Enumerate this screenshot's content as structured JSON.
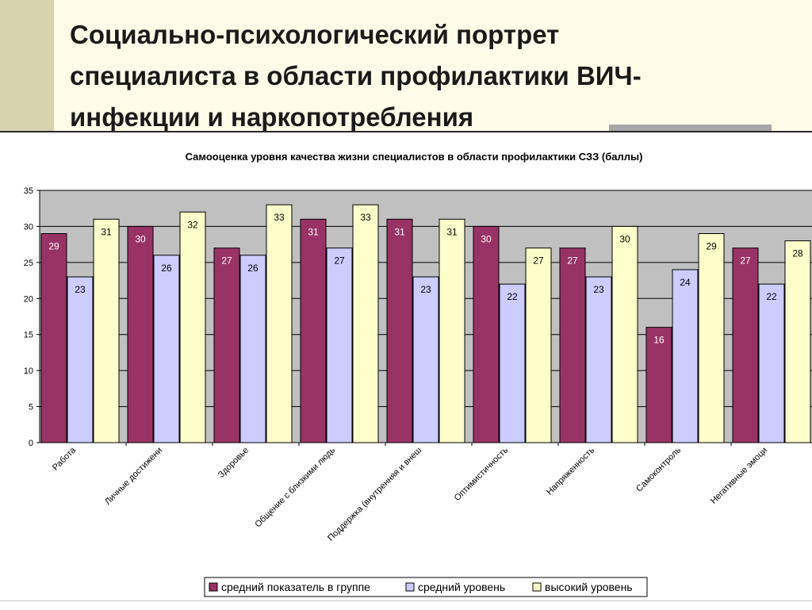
{
  "slide": {
    "title_lines": [
      "Социально-психологический портрет",
      "специалиста в области профилактики ВИЧ-",
      "инфекции и наркопотребления"
    ]
  },
  "colors": {
    "series": [
      "#993366",
      "#ccccff",
      "#ffffcc"
    ],
    "plot_bg": "#c0c0c0",
    "background": "#fffde9"
  },
  "chart_data": {
    "type": "bar",
    "title": "Самооценка уровня качества жизни специалистов в области профилактики СЗЗ (баллы)",
    "categories": [
      "Работа",
      "Личные достижени",
      "Здоровье",
      "Общение с близкими людь",
      "Поддержка (внутренняя и внеш",
      "Оптимистичность",
      "Напряженность",
      "Самоконтроль",
      "Негативные эмоци"
    ],
    "series": [
      {
        "name": "средний показатель в группе",
        "values": [
          29,
          30,
          27,
          31,
          31,
          30,
          27,
          16,
          27
        ]
      },
      {
        "name": "средний уровень",
        "values": [
          23,
          26,
          26,
          27,
          23,
          22,
          23,
          24,
          22
        ]
      },
      {
        "name": "высокий уровень",
        "values": [
          31,
          32,
          33,
          33,
          31,
          27,
          30,
          29,
          28
        ]
      }
    ],
    "ylim": [
      0,
      35
    ],
    "yticks": [
      0,
      5,
      10,
      15,
      20,
      25,
      30,
      35
    ],
    "grid": true,
    "legend": "bottom",
    "data_labels": true
  }
}
